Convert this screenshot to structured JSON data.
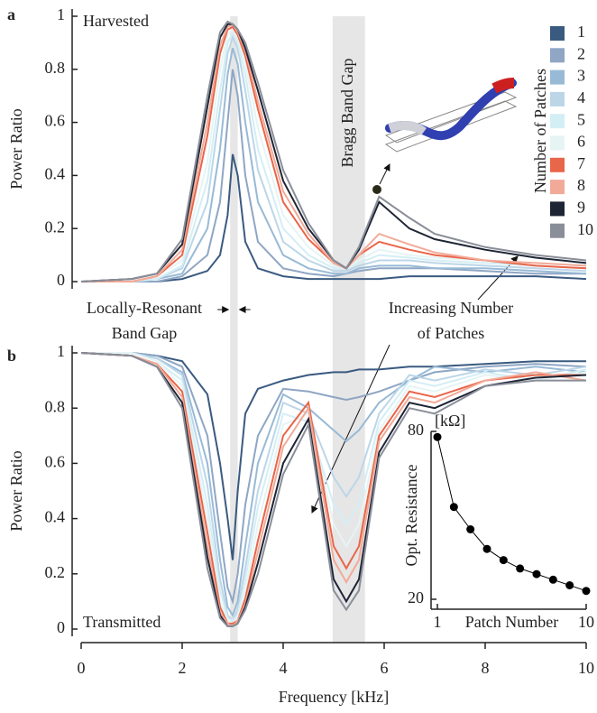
{
  "bands": [
    {
      "label_lines": [
        "Locally-Resonant",
        "Band Gap"
      ],
      "range": [
        2.95,
        3.1
      ]
    },
    {
      "label_lines": [
        "Bragg Band Gap"
      ],
      "range": [
        4.98,
        5.62
      ]
    }
  ],
  "annotation_lines": [
    "Increasing Number",
    "of Patches"
  ],
  "chart_data": [
    {
      "type": "line",
      "panel_label": "a",
      "title": "Harvested",
      "ylabel": "Power Ratio",
      "legend_title": "Number of Patches",
      "legend": "right",
      "xlim": [
        0,
        10
      ],
      "ylim": [
        0,
        1
      ],
      "yticks": [
        0,
        0.2,
        0.4,
        0.6,
        0.8,
        1
      ],
      "x": [
        0,
        1,
        1.5,
        2,
        2.5,
        2.75,
        2.9,
        3,
        3.1,
        3.25,
        3.5,
        4,
        4.5,
        5,
        5.25,
        5.5,
        5.9,
        6.5,
        7,
        8,
        9,
        10
      ],
      "series": [
        {
          "name": "1",
          "color": "#3a5a80",
          "values": [
            0,
            0,
            0,
            0.01,
            0.04,
            0.1,
            0.25,
            0.48,
            0.4,
            0.15,
            0.05,
            0.02,
            0.01,
            0.01,
            0.01,
            0.01,
            0.01,
            0.02,
            0.02,
            0.02,
            0.02,
            0.01
          ]
        },
        {
          "name": "2",
          "color": "#8fa6c4",
          "values": [
            0,
            0,
            0,
            0.02,
            0.1,
            0.3,
            0.6,
            0.8,
            0.7,
            0.4,
            0.15,
            0.05,
            0.03,
            0.02,
            0.03,
            0.04,
            0.05,
            0.05,
            0.05,
            0.04,
            0.03,
            0.03
          ]
        },
        {
          "name": "3",
          "color": "#98bad6",
          "values": [
            0,
            0,
            0.01,
            0.03,
            0.2,
            0.5,
            0.78,
            0.88,
            0.82,
            0.6,
            0.3,
            0.1,
            0.05,
            0.03,
            0.03,
            0.05,
            0.06,
            0.06,
            0.05,
            0.05,
            0.04,
            0.03
          ]
        },
        {
          "name": "4",
          "color": "#bcd6e8",
          "values": [
            0,
            0,
            0.01,
            0.05,
            0.3,
            0.65,
            0.86,
            0.92,
            0.88,
            0.72,
            0.42,
            0.15,
            0.08,
            0.04,
            0.04,
            0.06,
            0.08,
            0.08,
            0.07,
            0.06,
            0.05,
            0.04
          ]
        },
        {
          "name": "5",
          "color": "#d4eef5",
          "values": [
            0,
            0,
            0.01,
            0.06,
            0.38,
            0.72,
            0.9,
            0.94,
            0.9,
            0.78,
            0.5,
            0.2,
            0.1,
            0.05,
            0.05,
            0.07,
            0.1,
            0.09,
            0.08,
            0.07,
            0.06,
            0.05
          ]
        },
        {
          "name": "6",
          "color": "#e6f4f4",
          "values": [
            0,
            0,
            0.02,
            0.08,
            0.45,
            0.8,
            0.93,
            0.95,
            0.92,
            0.82,
            0.58,
            0.25,
            0.13,
            0.06,
            0.05,
            0.08,
            0.12,
            0.1,
            0.09,
            0.08,
            0.06,
            0.05
          ]
        },
        {
          "name": "7",
          "color": "#e8664a",
          "values": [
            0,
            0,
            0.02,
            0.1,
            0.55,
            0.86,
            0.95,
            0.96,
            0.93,
            0.85,
            0.65,
            0.3,
            0.16,
            0.07,
            0.05,
            0.1,
            0.15,
            0.12,
            0.1,
            0.08,
            0.06,
            0.05
          ]
        },
        {
          "name": "8",
          "color": "#f2aa98",
          "values": [
            0,
            0,
            0.02,
            0.12,
            0.6,
            0.89,
            0.96,
            0.97,
            0.94,
            0.87,
            0.68,
            0.34,
            0.18,
            0.07,
            0.05,
            0.1,
            0.18,
            0.14,
            0.11,
            0.08,
            0.07,
            0.06
          ]
        },
        {
          "name": "9",
          "color": "#1e2535",
          "values": [
            0,
            0.01,
            0.03,
            0.14,
            0.66,
            0.92,
            0.97,
            0.97,
            0.95,
            0.88,
            0.72,
            0.38,
            0.2,
            0.08,
            0.05,
            0.12,
            0.3,
            0.2,
            0.16,
            0.12,
            0.09,
            0.07
          ]
        },
        {
          "name": "10",
          "color": "#8a8e99",
          "values": [
            0,
            0.01,
            0.03,
            0.16,
            0.7,
            0.94,
            0.98,
            0.97,
            0.95,
            0.9,
            0.75,
            0.42,
            0.22,
            0.08,
            0.05,
            0.13,
            0.32,
            0.24,
            0.18,
            0.13,
            0.1,
            0.08
          ]
        }
      ]
    },
    {
      "type": "line",
      "panel_label": "b",
      "title": "Transmitted",
      "ylabel": "Power Ratio",
      "xlabel": "Frequency [kHz]",
      "xlim": [
        0,
        10
      ],
      "xticks": [
        0,
        2,
        4,
        6,
        8,
        10
      ],
      "ylim": [
        0,
        1
      ],
      "yticks": [
        0,
        0.2,
        0.4,
        0.6,
        0.8,
        1
      ],
      "x": [
        0,
        1,
        1.5,
        2,
        2.5,
        2.75,
        2.9,
        3,
        3.1,
        3.25,
        3.5,
        4,
        4.5,
        5,
        5.25,
        5.5,
        5.9,
        6.5,
        7,
        8,
        9,
        10
      ],
      "series": [
        {
          "color": "#3a5a80",
          "values": [
            1,
            1,
            0.99,
            0.97,
            0.85,
            0.6,
            0.4,
            0.25,
            0.5,
            0.78,
            0.87,
            0.9,
            0.92,
            0.93,
            0.93,
            0.94,
            0.94,
            0.95,
            0.95,
            0.96,
            0.97,
            0.97
          ]
        },
        {
          "color": "#8fa6c4",
          "values": [
            1,
            1,
            0.99,
            0.95,
            0.7,
            0.35,
            0.15,
            0.1,
            0.2,
            0.45,
            0.7,
            0.87,
            0.86,
            0.84,
            0.83,
            0.84,
            0.86,
            0.9,
            0.93,
            0.95,
            0.96,
            0.95
          ]
        },
        {
          "color": "#98bad6",
          "values": [
            1,
            1,
            0.98,
            0.93,
            0.6,
            0.25,
            0.08,
            0.05,
            0.1,
            0.3,
            0.6,
            0.85,
            0.8,
            0.72,
            0.68,
            0.72,
            0.82,
            0.9,
            0.95,
            0.93,
            0.95,
            0.93
          ]
        },
        {
          "color": "#bcd6e8",
          "values": [
            1,
            1,
            0.98,
            0.92,
            0.52,
            0.18,
            0.05,
            0.03,
            0.07,
            0.22,
            0.5,
            0.82,
            0.78,
            0.55,
            0.48,
            0.55,
            0.78,
            0.92,
            0.9,
            0.94,
            0.92,
            0.95
          ]
        },
        {
          "color": "#d4eef5",
          "values": [
            1,
            1,
            0.97,
            0.9,
            0.45,
            0.14,
            0.04,
            0.03,
            0.05,
            0.18,
            0.44,
            0.78,
            0.75,
            0.45,
            0.38,
            0.45,
            0.75,
            0.9,
            0.88,
            0.93,
            0.9,
            0.94
          ]
        },
        {
          "color": "#e6f4f4",
          "values": [
            1,
            1,
            0.97,
            0.88,
            0.4,
            0.1,
            0.03,
            0.02,
            0.04,
            0.14,
            0.38,
            0.74,
            0.78,
            0.38,
            0.3,
            0.38,
            0.72,
            0.88,
            0.86,
            0.92,
            0.9,
            0.93
          ]
        },
        {
          "color": "#e8664a",
          "values": [
            1,
            0.99,
            0.96,
            0.86,
            0.35,
            0.08,
            0.02,
            0.02,
            0.03,
            0.11,
            0.32,
            0.7,
            0.82,
            0.3,
            0.22,
            0.3,
            0.7,
            0.86,
            0.84,
            0.9,
            0.92,
            0.92
          ]
        },
        {
          "color": "#f2aa98",
          "values": [
            1,
            0.99,
            0.96,
            0.84,
            0.3,
            0.06,
            0.02,
            0.01,
            0.03,
            0.09,
            0.28,
            0.66,
            0.8,
            0.25,
            0.17,
            0.25,
            0.68,
            0.84,
            0.82,
            0.9,
            0.93,
            0.9
          ]
        },
        {
          "color": "#1e2535",
          "values": [
            1,
            0.99,
            0.95,
            0.82,
            0.26,
            0.05,
            0.01,
            0.01,
            0.02,
            0.08,
            0.24,
            0.6,
            0.76,
            0.18,
            0.1,
            0.18,
            0.64,
            0.82,
            0.8,
            0.88,
            0.91,
            0.92
          ]
        },
        {
          "color": "#8a8e99",
          "values": [
            1,
            0.99,
            0.95,
            0.8,
            0.22,
            0.04,
            0.01,
            0.01,
            0.02,
            0.07,
            0.2,
            0.56,
            0.74,
            0.14,
            0.07,
            0.14,
            0.62,
            0.8,
            0.78,
            0.88,
            0.9,
            0.9
          ]
        }
      ]
    },
    {
      "type": "line",
      "markers": true,
      "ylabel": "Opt. Resistance",
      "yunit": "[kΩ]",
      "xlabel": "Patch Number",
      "xlim": [
        1,
        10
      ],
      "xticks": [
        1,
        10
      ],
      "ylim": [
        20,
        80
      ],
      "yticks": [
        20,
        80
      ],
      "x": [
        1,
        2,
        3,
        4,
        5,
        6,
        7,
        8,
        9,
        10
      ],
      "series": [
        {
          "color": "#000000",
          "values": [
            78,
            53,
            45,
            38,
            34,
            31,
            29,
            27,
            25,
            23
          ]
        }
      ]
    }
  ]
}
